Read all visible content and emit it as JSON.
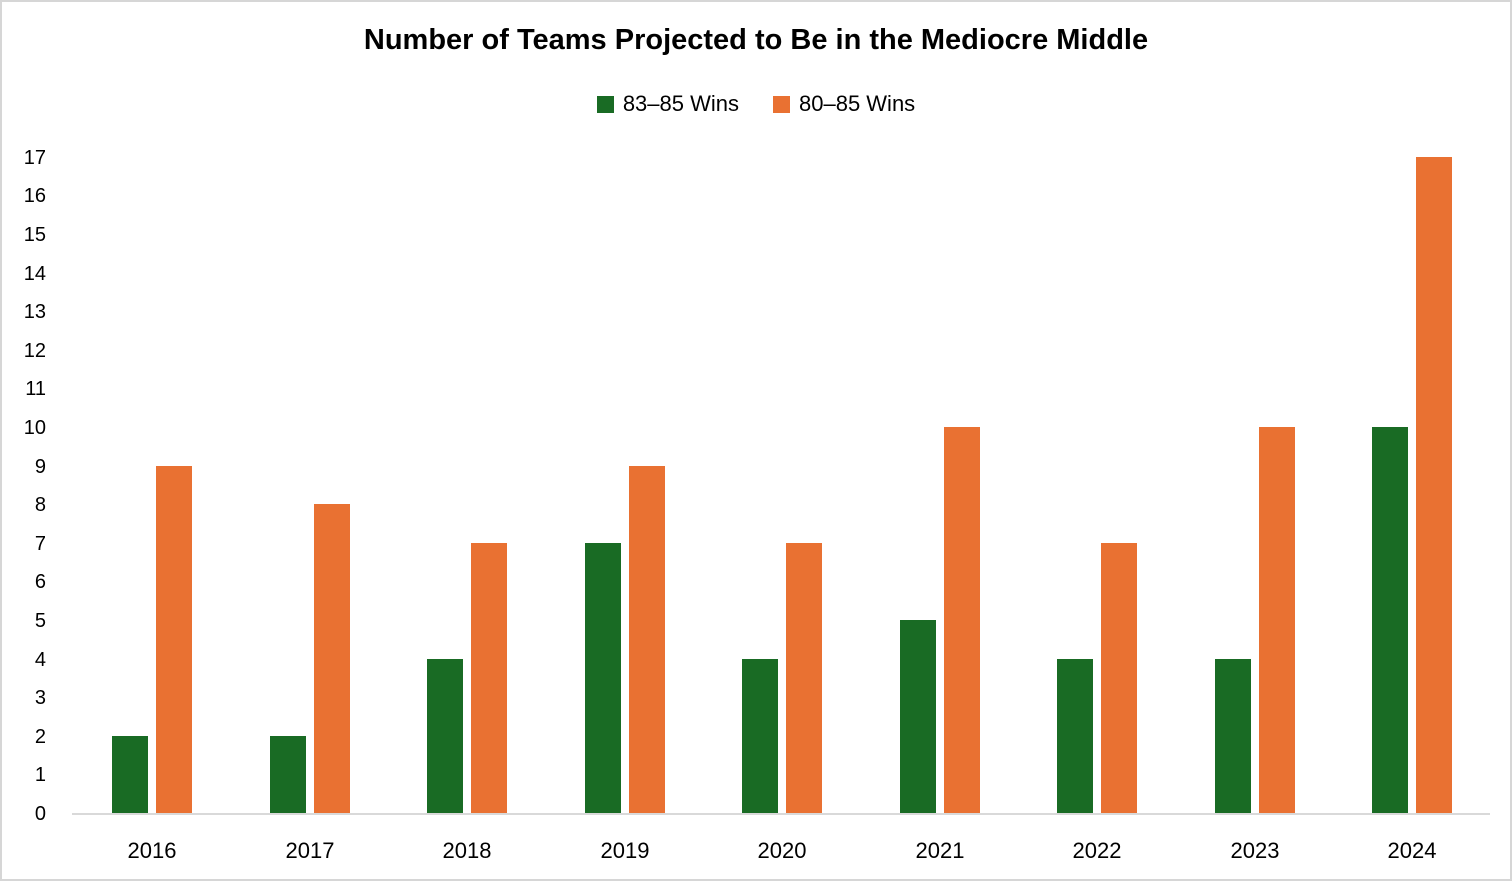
{
  "chart_data": {
    "type": "bar",
    "title": "Number of Teams Projected to Be in the Mediocre Middle",
    "categories": [
      "2016",
      "2017",
      "2018",
      "2019",
      "2020",
      "2021",
      "2022",
      "2023",
      "2024"
    ],
    "series": [
      {
        "name": "83–85 Wins",
        "color": "#196B24",
        "values": [
          2,
          2,
          4,
          7,
          4,
          5,
          4,
          4,
          10
        ]
      },
      {
        "name": "80–85 Wins",
        "color": "#E97132",
        "values": [
          9,
          8,
          7,
          9,
          7,
          10,
          7,
          10,
          17
        ]
      }
    ],
    "xlabel": "",
    "ylabel": "",
    "ylim": [
      0,
      17
    ],
    "ytick_step": 1,
    "grid": false,
    "legend_position": "top-center",
    "colors": {
      "axis_line": "#D9D9D9",
      "frame_border": "#D6D6D6",
      "text": "#000000",
      "background": "#FFFFFF"
    }
  }
}
